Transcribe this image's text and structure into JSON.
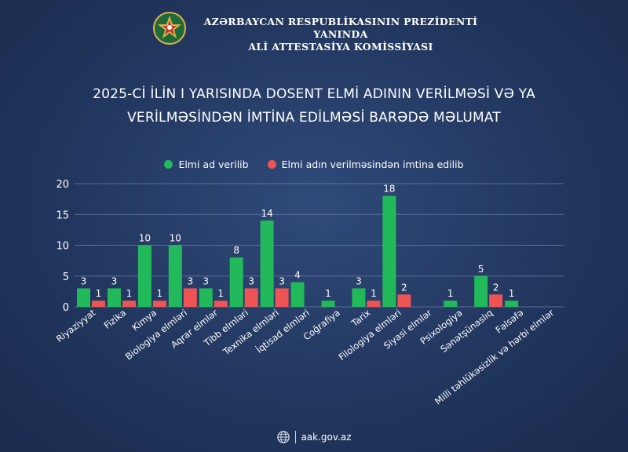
{
  "header": {
    "org_line1": "AZƏRBAYCAN RESPUBLİKASININ PREZİDENTİ YANINDA",
    "org_line2": "ALİ ATTESTASİYA KOMİSSİYASI"
  },
  "title_line1": "2025-Cİ İLİN I YARISINDA DOSENT ELMİ ADININ VERİLMƏSİ VƏ YA",
  "title_line2": "VERİLMƏSİNDƏN İMTİNA EDİLMƏSİ BARƏDƏ MƏLUMAT",
  "footer": {
    "website": "aak.gov.az"
  },
  "colors": {
    "green": "#22b95a",
    "red": "#ef5455",
    "background": "#22375f"
  },
  "chart_data": {
    "type": "bar",
    "title": "2025-Cİ İLİN I YARISINDA DOSENT ELMİ ADININ VERİLMƏSİ VƏ YA VERİLMƏSİNDƏN İMTİNA EDİLMƏSİ BARƏDƏ MƏLUMAT",
    "categories": [
      "Riyaziyyat",
      "Fizika",
      "Kimya",
      "Biologiya elmləri",
      "Aqrar elmlər",
      "Tibb elmləri",
      "Texnika elmləri",
      "İqtisad elmləri",
      "Coğrafiya",
      "Tarix",
      "Filologiya elmləri",
      "Siyasi elmlər",
      "Psixologiya",
      "Sənətşünaslıq",
      "Fəlsəfə",
      "Milli təhlükəsizlik və hərbi elmlər"
    ],
    "series": [
      {
        "name": "Elmi ad verilib",
        "color": "#22b95a",
        "values": [
          3,
          3,
          10,
          10,
          3,
          8,
          14,
          4,
          1,
          3,
          18,
          0,
          1,
          5,
          1,
          0
        ]
      },
      {
        "name": "Elmi adın verilməsindən imtina edilib",
        "color": "#ef5455",
        "values": [
          1,
          1,
          1,
          3,
          1,
          3,
          3,
          0,
          0,
          1,
          2,
          0,
          0,
          2,
          0,
          0
        ]
      }
    ],
    "yticks": [
      0,
      5,
      10,
      15,
      20
    ],
    "ylim": [
      0,
      20
    ],
    "grid": true,
    "legend": "top-center"
  }
}
